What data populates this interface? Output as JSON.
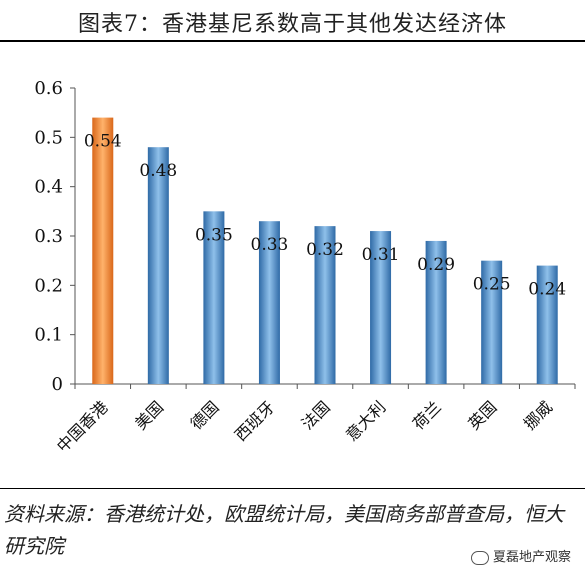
{
  "header": {
    "title": "图表7：香港基尼系数高于其他发达经济体"
  },
  "chart_data": {
    "type": "bar",
    "categories": [
      "中国香港",
      "美国",
      "德国",
      "西班牙",
      "法国",
      "意大利",
      "荷兰",
      "英国",
      "挪威"
    ],
    "values": [
      0.54,
      0.48,
      0.35,
      0.33,
      0.32,
      0.31,
      0.29,
      0.25,
      0.24
    ],
    "data_labels": [
      "0.54",
      "0.48",
      "0.35",
      "0.33",
      "0.32",
      "0.31",
      "0.29",
      "0.25",
      "0.24"
    ],
    "yticks": [
      "0",
      "0.1",
      "0.2",
      "0.3",
      "0.4",
      "0.5",
      "0.6"
    ],
    "ylim": [
      0,
      0.6
    ],
    "title": "",
    "xlabel": "",
    "ylabel": "",
    "grid": false,
    "legend": "none",
    "colors": {
      "highlight": "#f0903a",
      "default": "#4a8cc8"
    }
  },
  "footer": {
    "source": "资料来源：香港统计处，欧盟统计局，美国商务部普查局，恒大研究院",
    "watermark": "夏磊地产观察"
  }
}
